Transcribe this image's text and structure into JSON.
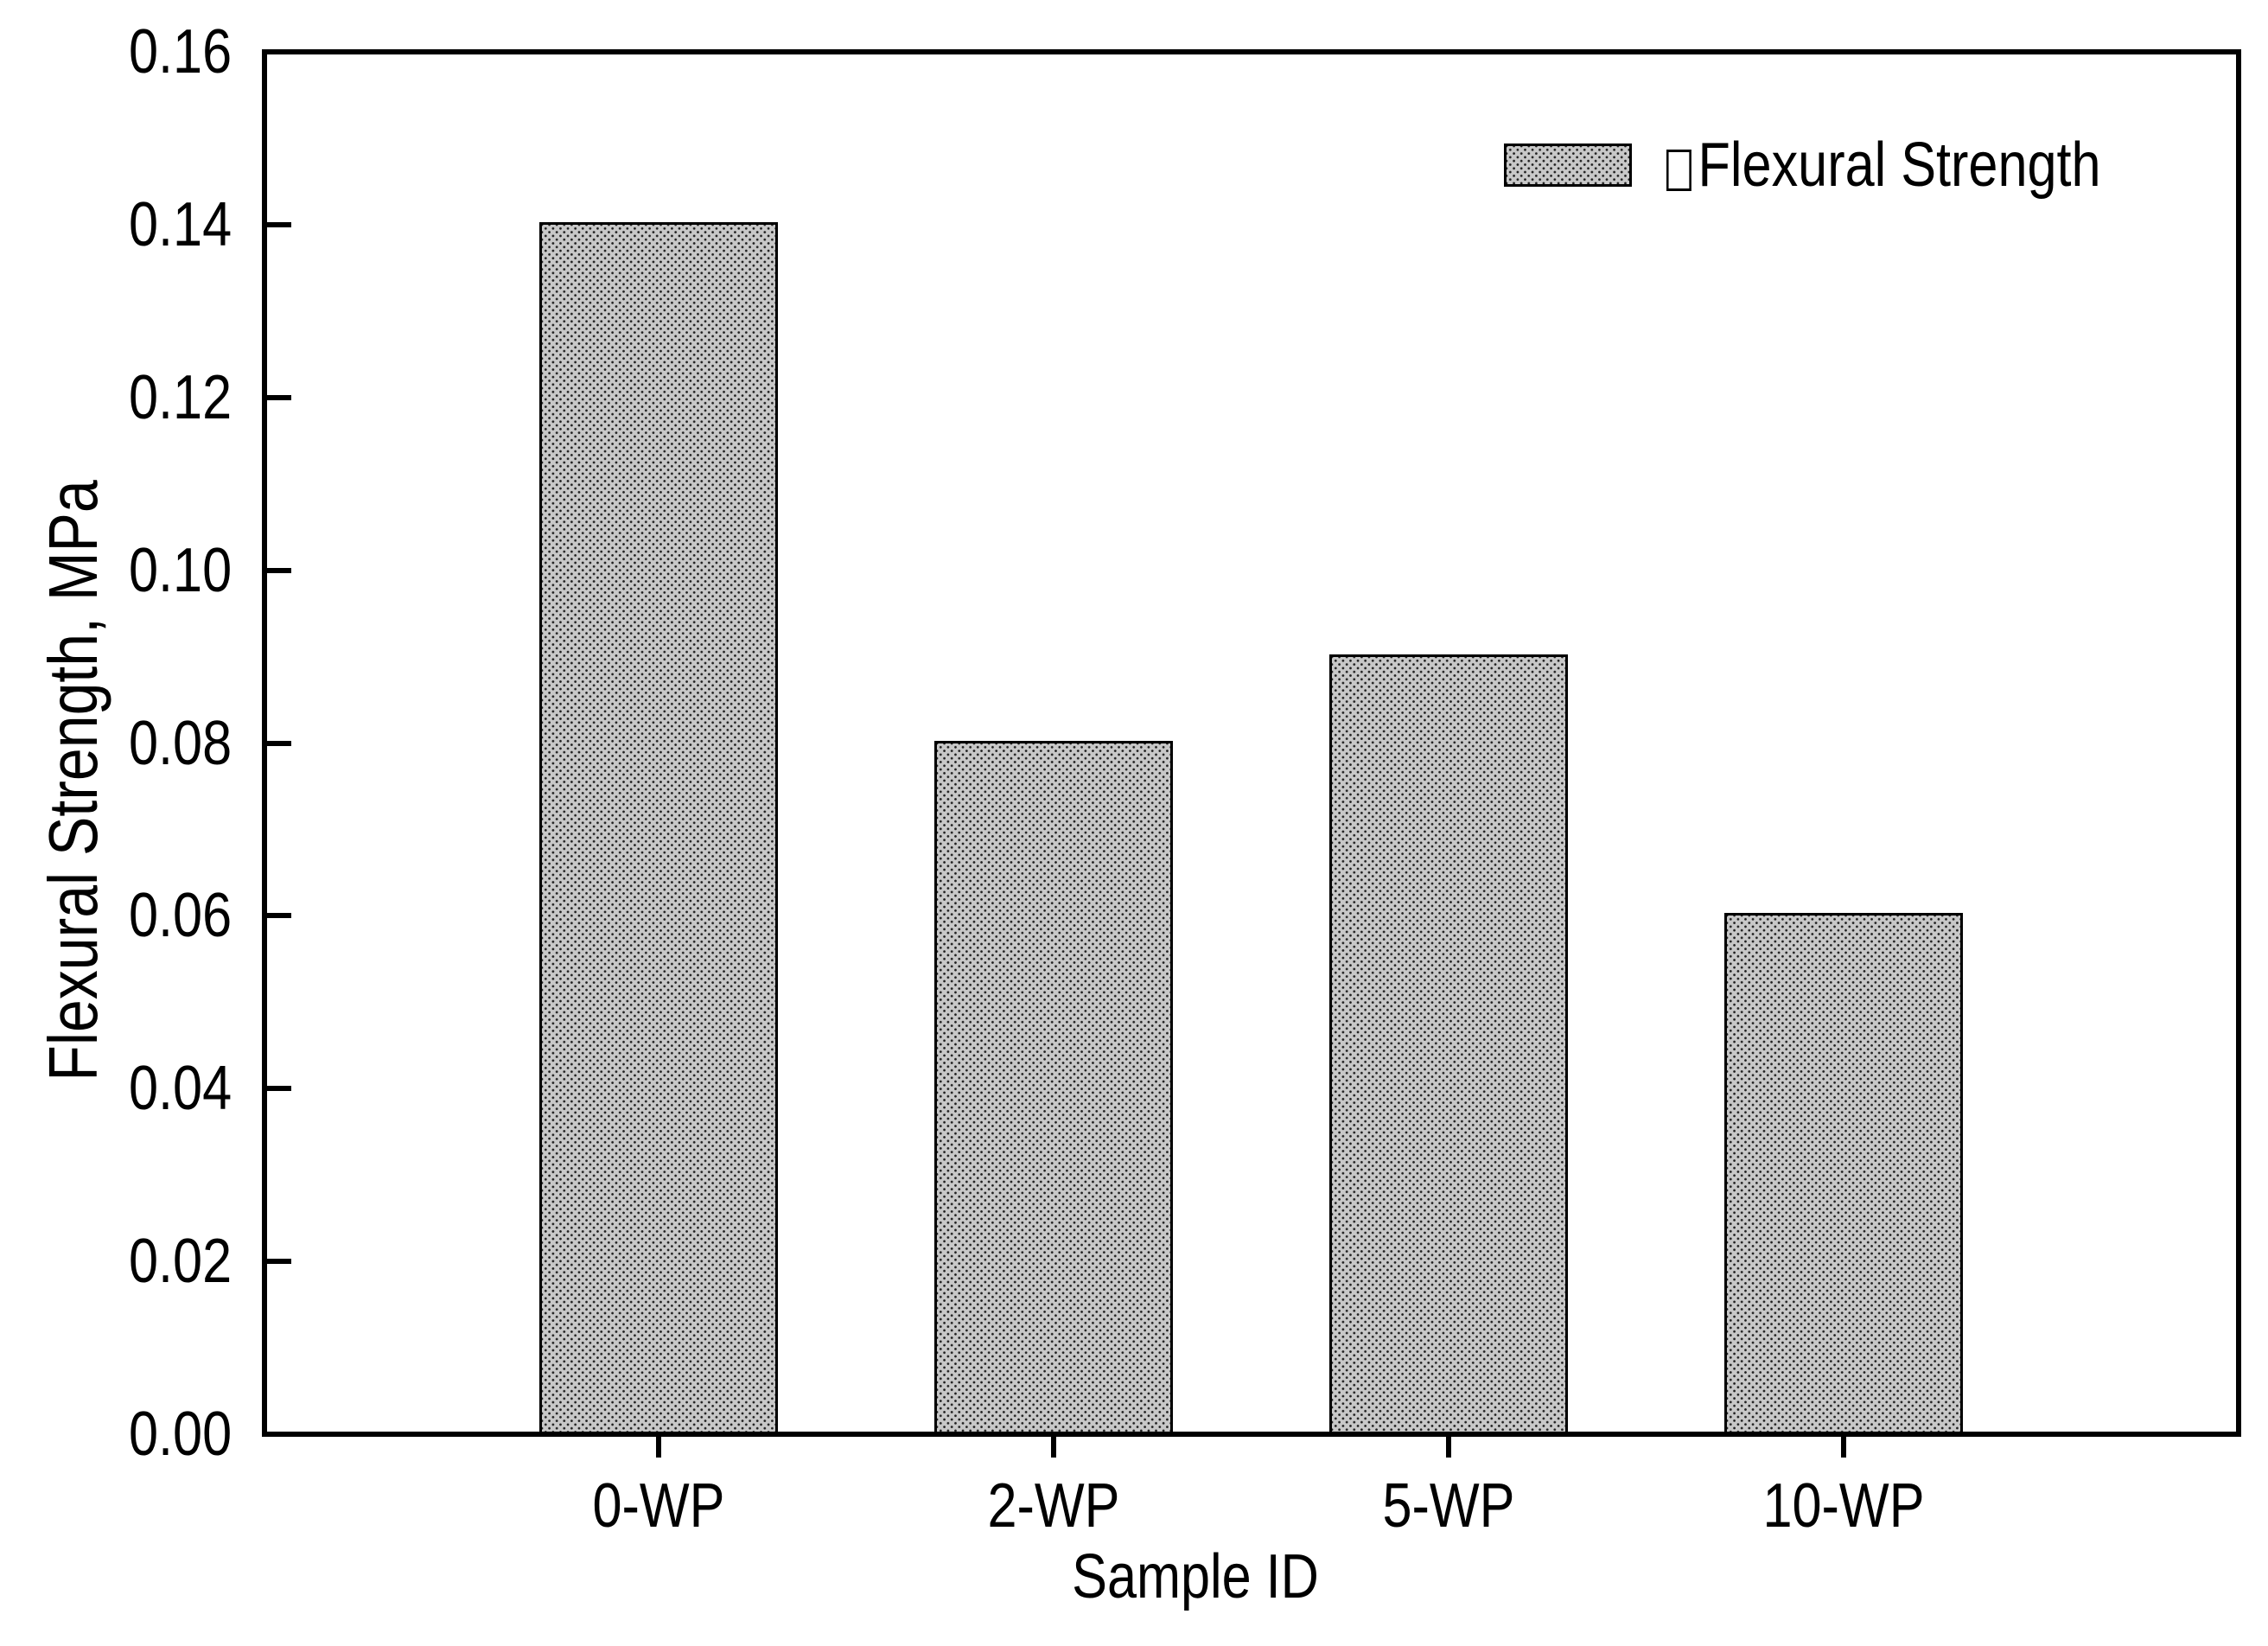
{
  "figure": {
    "background": "#ffffff",
    "axis_color": "#000000",
    "text_color": "#000000"
  },
  "legend": {
    "label": "Flexural Strength",
    "marker": "dense-dot-pattern-swatch",
    "missing_glyph": "empty-box"
  },
  "chart_data": {
    "type": "bar",
    "title": "",
    "categories": [
      "0-WP",
      "2-WP",
      "5-WP",
      "10-WP"
    ],
    "values": [
      0.14,
      0.08,
      0.09,
      0.06
    ],
    "series": [
      {
        "name": "Flexural Strength",
        "values": [
          0.14,
          0.08,
          0.09,
          0.06
        ]
      }
    ],
    "xlabel": "Sample ID",
    "ylabel": "Flexural Strength, MPa",
    "ylim": [
      0,
      0.16
    ],
    "ytick_step": 0.02,
    "ytick_labels": [
      "0.16",
      "0.14",
      "0.12",
      "0.10",
      "0.08",
      "0.06",
      "0.04",
      "0.02",
      "0.00"
    ],
    "legend_position": "top-right-inside",
    "grid": false,
    "tick_direction_y": "in",
    "tick_direction_x": "out",
    "bar_fill": "#c8c8c8",
    "bar_dot_color": "#1e1e1e",
    "bar_border_color": "#000000"
  }
}
